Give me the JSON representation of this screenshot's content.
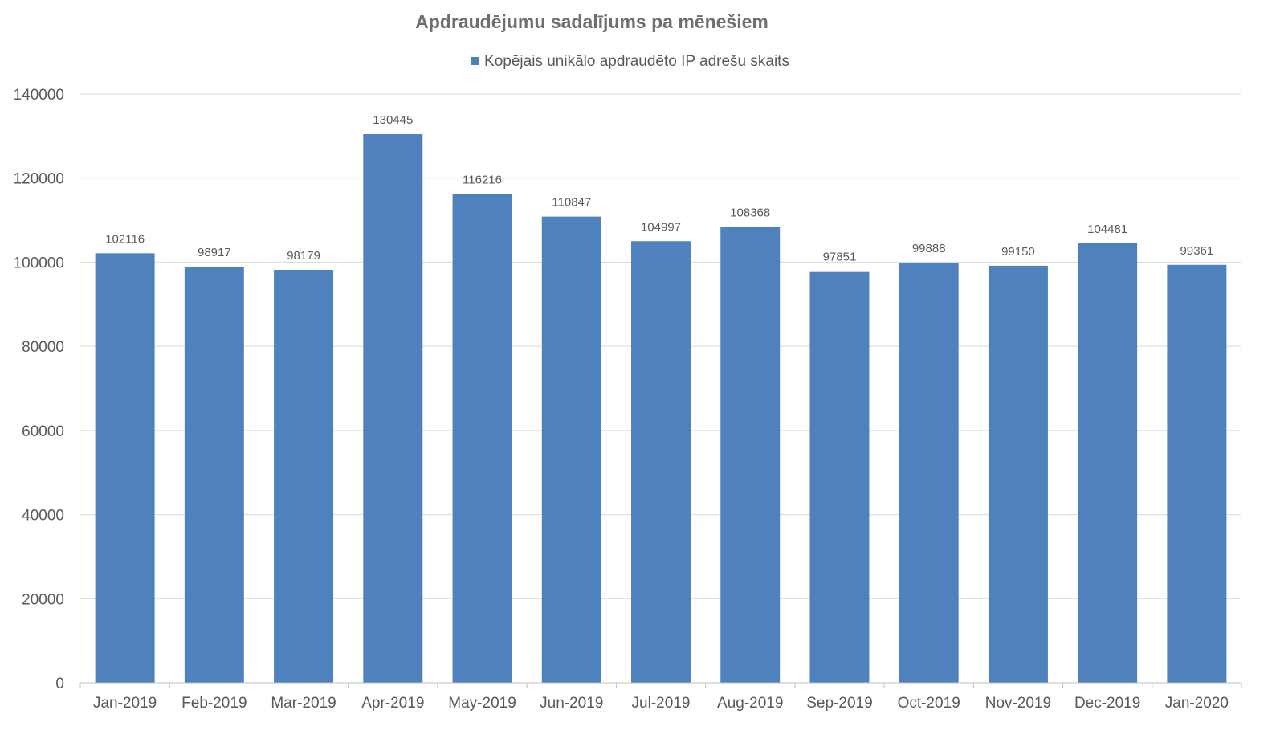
{
  "chart_data": {
    "type": "bar",
    "title": "Apdraudējumu sadalījums pa mēnešiem",
    "xlabel": "",
    "ylabel": "",
    "categories": [
      "Jan-2019",
      "Feb-2019",
      "Mar-2019",
      "Apr-2019",
      "May-2019",
      "Jun-2019",
      "Jul-2019",
      "Aug-2019",
      "Sep-2019",
      "Oct-2019",
      "Nov-2019",
      "Dec-2019",
      "Jan-2020"
    ],
    "series": [
      {
        "name": "Kopējais unikālo apdraudēto IP adrešu skaits",
        "color": "#4f81bd",
        "values": [
          102116,
          98917,
          98179,
          130445,
          116216,
          110847,
          104997,
          108368,
          97851,
          99888,
          99150,
          104481,
          99361
        ]
      }
    ],
    "ylim": [
      0,
      140000
    ],
    "yticks": [
      0,
      20000,
      40000,
      60000,
      80000,
      100000,
      120000,
      140000
    ],
    "grid": true,
    "legend_position": "top",
    "data_labels": true
  }
}
